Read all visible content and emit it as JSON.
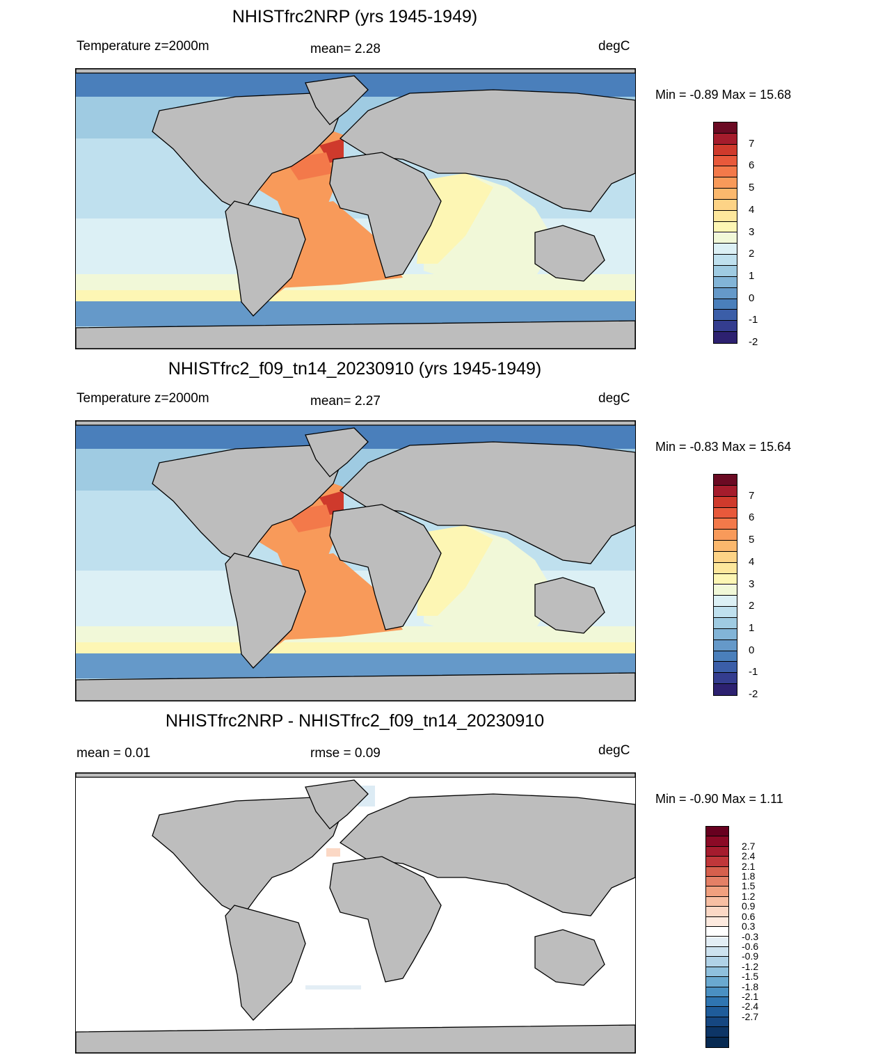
{
  "panels": [
    {
      "title": "NHISTfrc2NRP (yrs 1945-1949)",
      "left_label": "Temperature z=2000m",
      "center_label": "mean=   2.28",
      "right_label": "degC",
      "minmax": "Min =  -0.89 Max =  15.68"
    },
    {
      "title": "NHISTfrc2_f09_tn14_20230910 (yrs 1945-1949)",
      "left_label": "Temperature z=2000m",
      "center_label": "mean=   2.27",
      "right_label": "degC",
      "minmax": "Min =  -0.83 Max =  15.64"
    },
    {
      "title": "NHISTfrc2NRP - NHISTfrc2_f09_tn14_20230910",
      "left_label": "mean =   0.01",
      "center_label": "rmse =   0.09",
      "right_label": "degC",
      "minmax": "Min =  -0.90 Max =   1.11"
    }
  ],
  "colorbar_abs": {
    "colors": [
      "#6b0a23",
      "#a51c2c",
      "#cf3a2c",
      "#e8593b",
      "#f3794a",
      "#f89a5a",
      "#fbb86d",
      "#fdd386",
      "#fde79c",
      "#fdf6b4",
      "#f1f8d8",
      "#dcf0f5",
      "#bfe0ee",
      "#9fcbe2",
      "#82b4d7",
      "#6599c9",
      "#4a7fbb",
      "#3b5ea8",
      "#343d8f",
      "#2d2170"
    ],
    "tick_labels": [
      "7",
      "6",
      "5",
      "4",
      "3",
      "2",
      "1",
      "0",
      "-1",
      "-2"
    ]
  },
  "colorbar_diff": {
    "colors": [
      "#67001f",
      "#8b0a26",
      "#a51c2e",
      "#c0373a",
      "#d6604d",
      "#e48066",
      "#f0a07f",
      "#f7bfa3",
      "#fbd8c5",
      "#fdeadf",
      "#ffffff",
      "#e3eef5",
      "#cde2ef",
      "#b0d2e7",
      "#8fc0dd",
      "#6aa9d0",
      "#4a90c2",
      "#2f75b1",
      "#1f5c9a",
      "#164781",
      "#0d3566",
      "#072a52"
    ],
    "tick_labels": [
      "2.7",
      "2.4",
      "2.1",
      "1.8",
      "1.5",
      "1.2",
      "0.9",
      "0.6",
      "0.3",
      "-0.3",
      "-0.6",
      "-0.9",
      "-1.2",
      "-1.5",
      "-1.8",
      "-2.1",
      "-2.4",
      "-2.7"
    ]
  }
}
